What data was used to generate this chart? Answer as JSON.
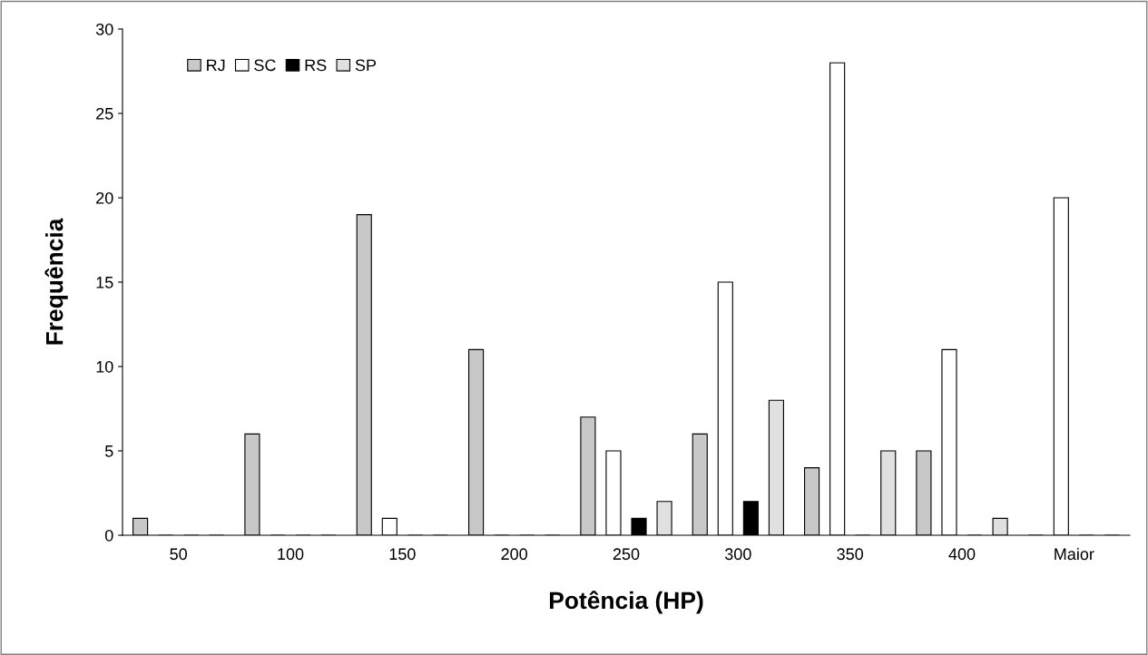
{
  "chart_data": {
    "type": "bar",
    "xlabel": "Potência (HP)",
    "ylabel": "Frequência",
    "categories": [
      "50",
      "100",
      "150",
      "200",
      "250",
      "300",
      "350",
      "400",
      "Maior"
    ],
    "series": [
      {
        "name": "RJ",
        "color": "#c8c8c8",
        "values": [
          1,
          6,
          19,
          11,
          7,
          6,
          4,
          5,
          0
        ]
      },
      {
        "name": "SC",
        "color": "#ffffff",
        "values": [
          0,
          0,
          1,
          0,
          5,
          15,
          28,
          11,
          20
        ]
      },
      {
        "name": "RS",
        "color": "#000000",
        "values": [
          0,
          0,
          0,
          0,
          1,
          2,
          0,
          0,
          0
        ]
      },
      {
        "name": "SP",
        "color": "#e0e0e0",
        "values": [
          0,
          0,
          0,
          0,
          2,
          8,
          5,
          1,
          0
        ]
      }
    ],
    "ylim": [
      0,
      30
    ],
    "yticks": [
      0,
      5,
      10,
      15,
      20,
      25,
      30
    ],
    "grid": false,
    "legend": "top left"
  }
}
